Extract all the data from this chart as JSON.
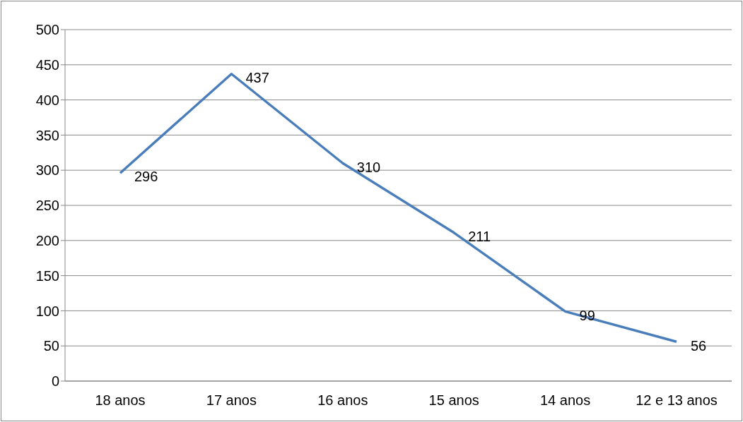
{
  "chart_data": {
    "type": "line",
    "categories": [
      "18 anos",
      "17 anos",
      "16 anos",
      "15 anos",
      "14 anos",
      "12 e 13 anos"
    ],
    "series": [
      {
        "color": "#4a7ebb",
        "values": [
          296,
          437,
          310,
          211,
          99,
          56
        ]
      }
    ],
    "ylim": [
      0,
      500
    ],
    "yticks": [
      0,
      50,
      100,
      150,
      200,
      250,
      300,
      350,
      400,
      450,
      500
    ],
    "grid": "y",
    "marker": "none",
    "data_labels": true
  }
}
